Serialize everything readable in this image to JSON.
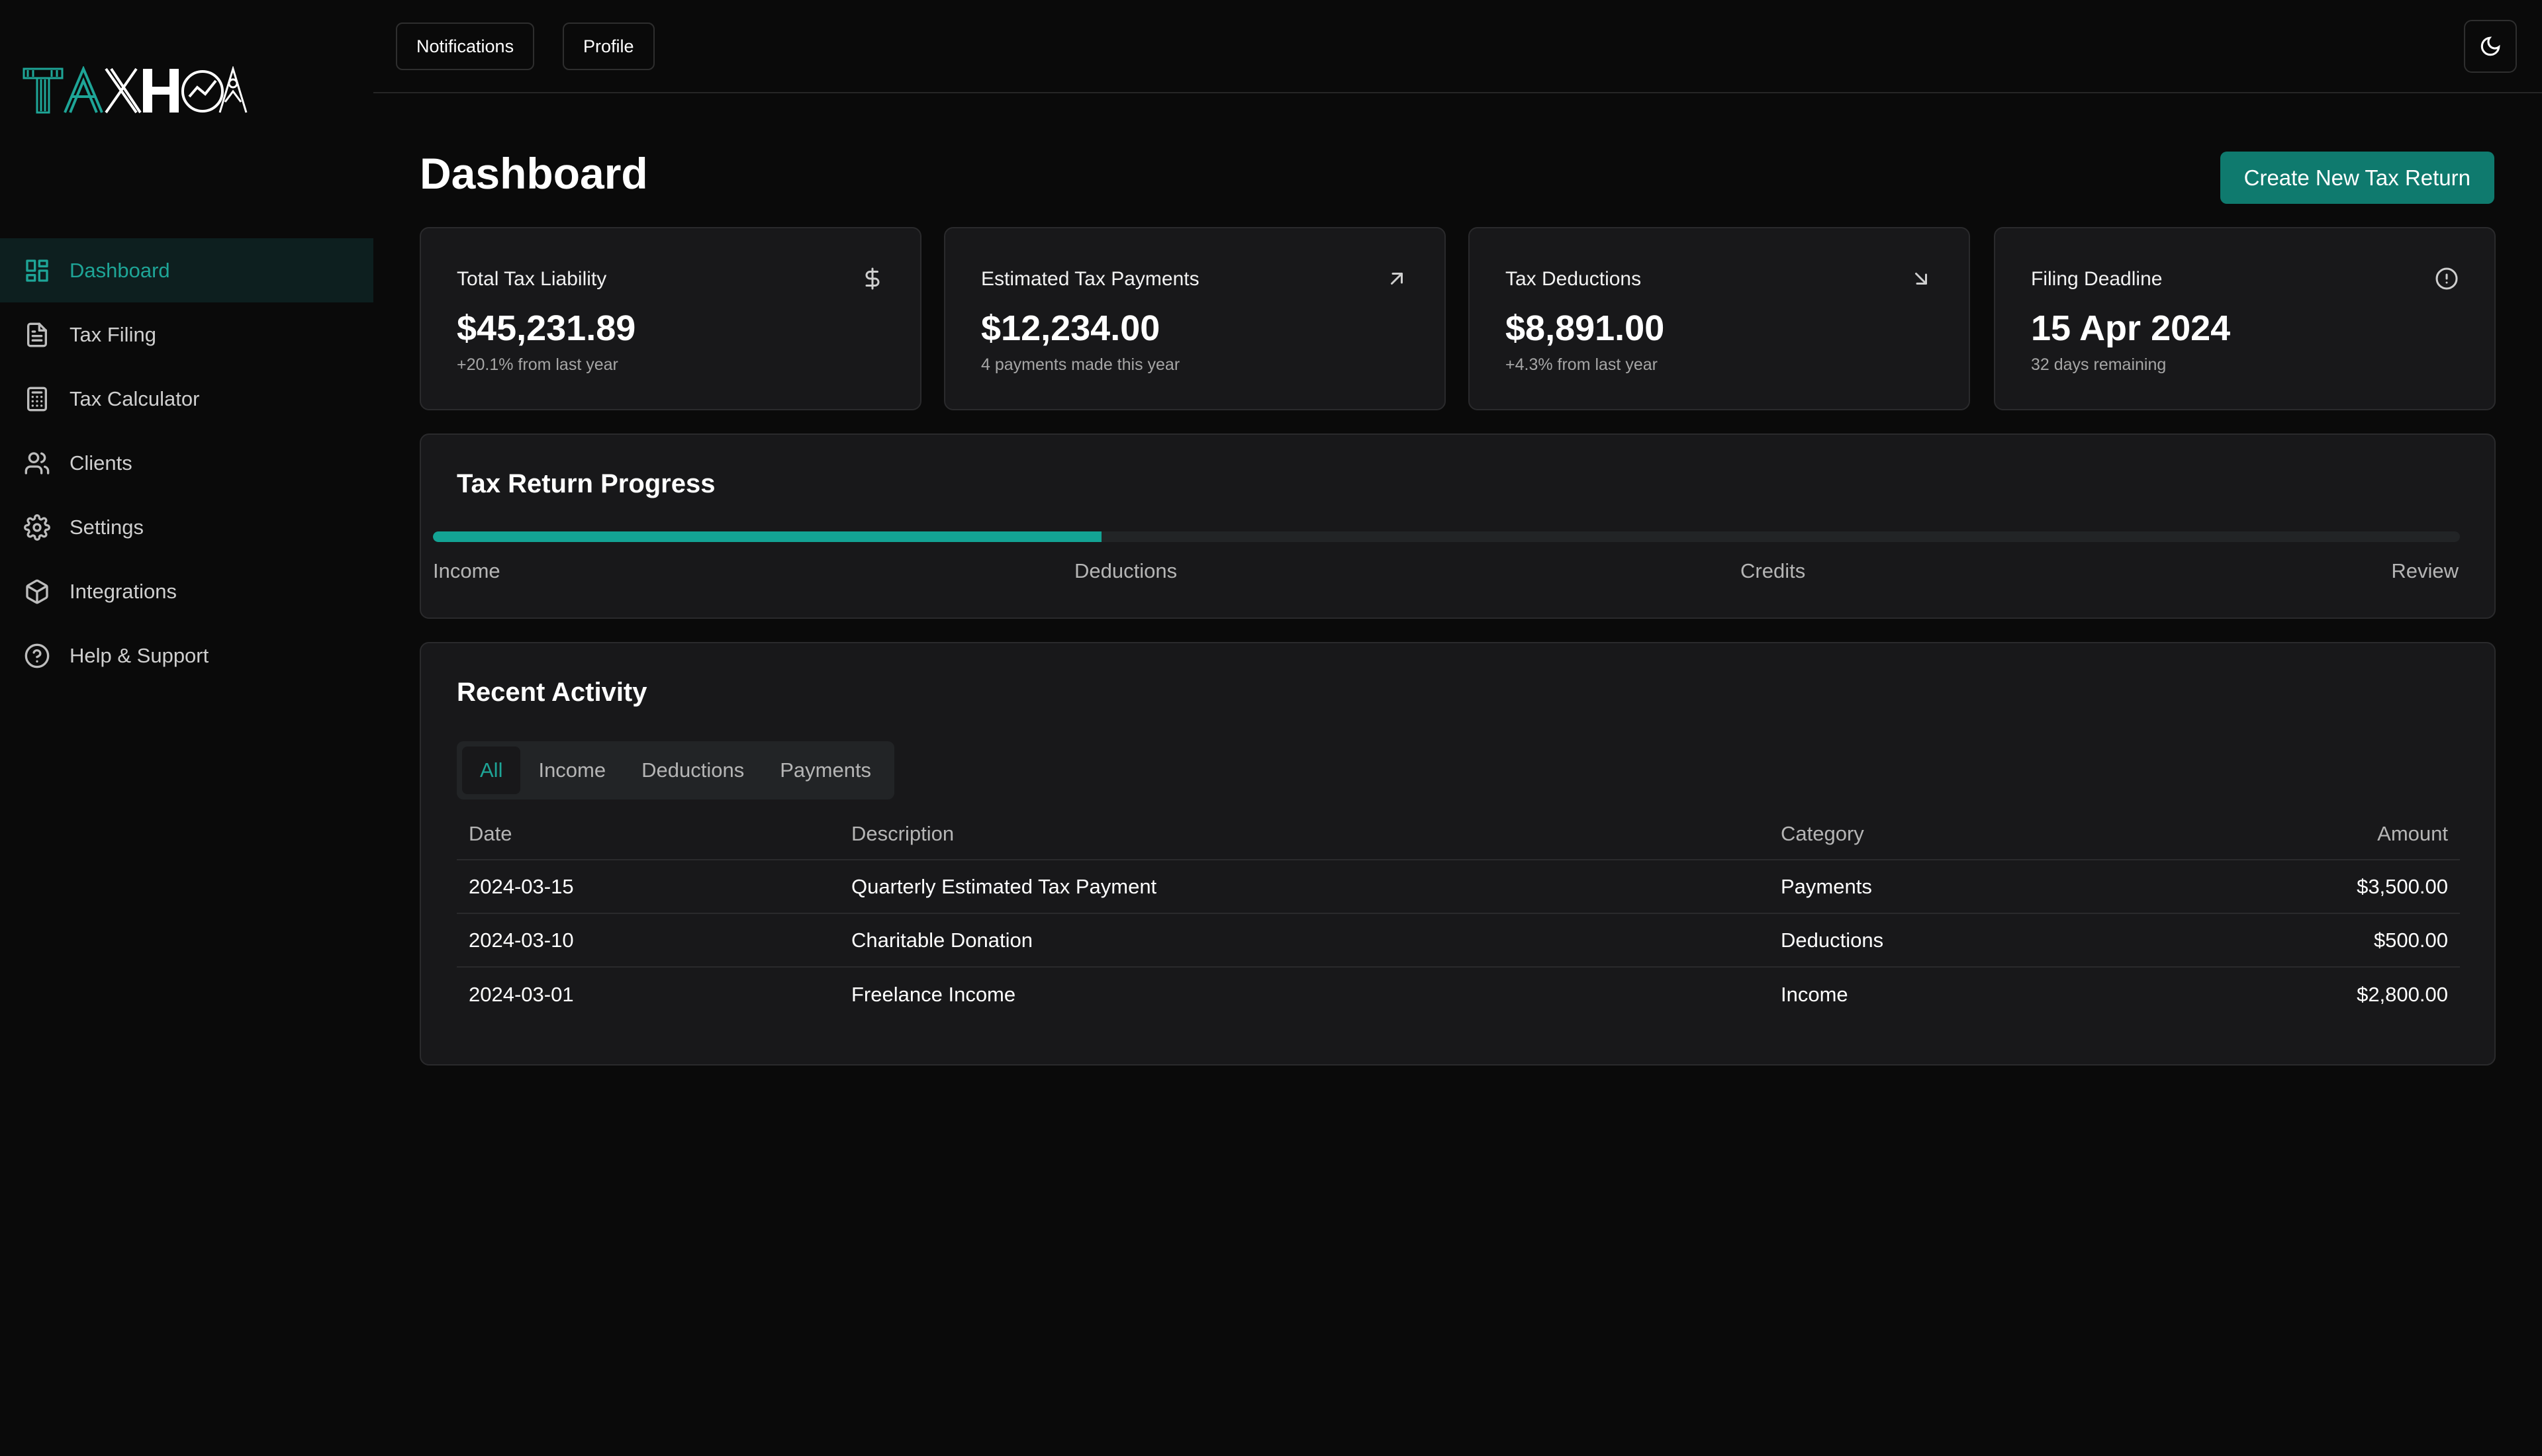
{
  "brand": {
    "name": "TAXHOA",
    "accent": "#1ea597"
  },
  "sidebar": {
    "items": [
      {
        "label": "Dashboard",
        "icon": "dashboard-icon",
        "active": true
      },
      {
        "label": "Tax Filing",
        "icon": "file-text-icon"
      },
      {
        "label": "Tax Calculator",
        "icon": "calculator-icon"
      },
      {
        "label": "Clients",
        "icon": "users-icon"
      },
      {
        "label": "Settings",
        "icon": "gear-icon"
      },
      {
        "label": "Integrations",
        "icon": "package-icon"
      },
      {
        "label": "Help & Support",
        "icon": "help-circle-icon"
      }
    ]
  },
  "header": {
    "notifications_label": "Notifications",
    "profile_label": "Profile",
    "theme_toggle_icon": "moon-icon"
  },
  "main": {
    "title": "Dashboard",
    "create_button_label": "Create New Tax Return",
    "stats": [
      {
        "title": "Total Tax Liability",
        "value": "$45,231.89",
        "sub": "+20.1% from last year",
        "icon": "dollar-icon"
      },
      {
        "title": "Estimated Tax Payments",
        "value": "$12,234.00",
        "sub": "4 payments made this year",
        "icon": "arrow-up-right-icon"
      },
      {
        "title": "Tax Deductions",
        "value": "$8,891.00",
        "sub": "+4.3% from last year",
        "icon": "arrow-down-right-icon"
      },
      {
        "title": "Filing Deadline",
        "value": "15 Apr 2024",
        "sub": "32 days remaining",
        "icon": "alert-circle-icon"
      }
    ],
    "progress": {
      "title": "Tax Return Progress",
      "percent": 33,
      "steps": [
        "Income",
        "Deductions",
        "Credits",
        "Review"
      ]
    },
    "activity": {
      "title": "Recent Activity",
      "tabs": [
        "All",
        "Income",
        "Deductions",
        "Payments"
      ],
      "active_tab": "All",
      "columns": [
        "Date",
        "Description",
        "Category",
        "Amount"
      ],
      "rows": [
        {
          "date": "2024-03-15",
          "description": "Quarterly Estimated Tax Payment",
          "category": "Payments",
          "amount": "$3,500.00"
        },
        {
          "date": "2024-03-10",
          "description": "Charitable Donation",
          "category": "Deductions",
          "amount": "$500.00"
        },
        {
          "date": "2024-03-01",
          "description": "Freelance Income",
          "category": "Income",
          "amount": "$2,800.00"
        }
      ]
    }
  }
}
